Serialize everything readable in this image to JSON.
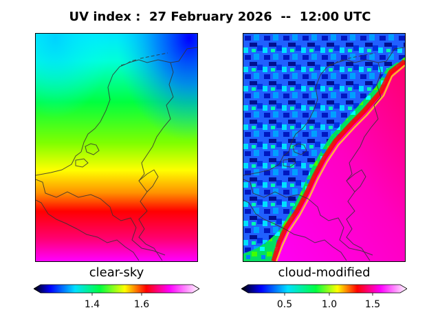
{
  "title": "UV index :  27 February 2026  --  12:00 UTC",
  "panels": [
    {
      "label": "clear-sky",
      "colorbar": {
        "ticks": [
          "1.4",
          "1.6"
        ],
        "range": [
          1.2,
          1.8
        ]
      }
    },
    {
      "label": "cloud-modified",
      "colorbar": {
        "ticks": [
          "0.5",
          "1.0",
          "1.5"
        ],
        "range": [
          0.0,
          1.85
        ]
      }
    }
  ],
  "colormap": {
    "name": "gist_ncar-like",
    "stops": [
      "#000000",
      "#0000ff",
      "#00ffff",
      "#00ff00",
      "#ffff00",
      "#ff0000",
      "#ff00ff",
      "#ffffff"
    ],
    "border_color": "#333333"
  }
}
